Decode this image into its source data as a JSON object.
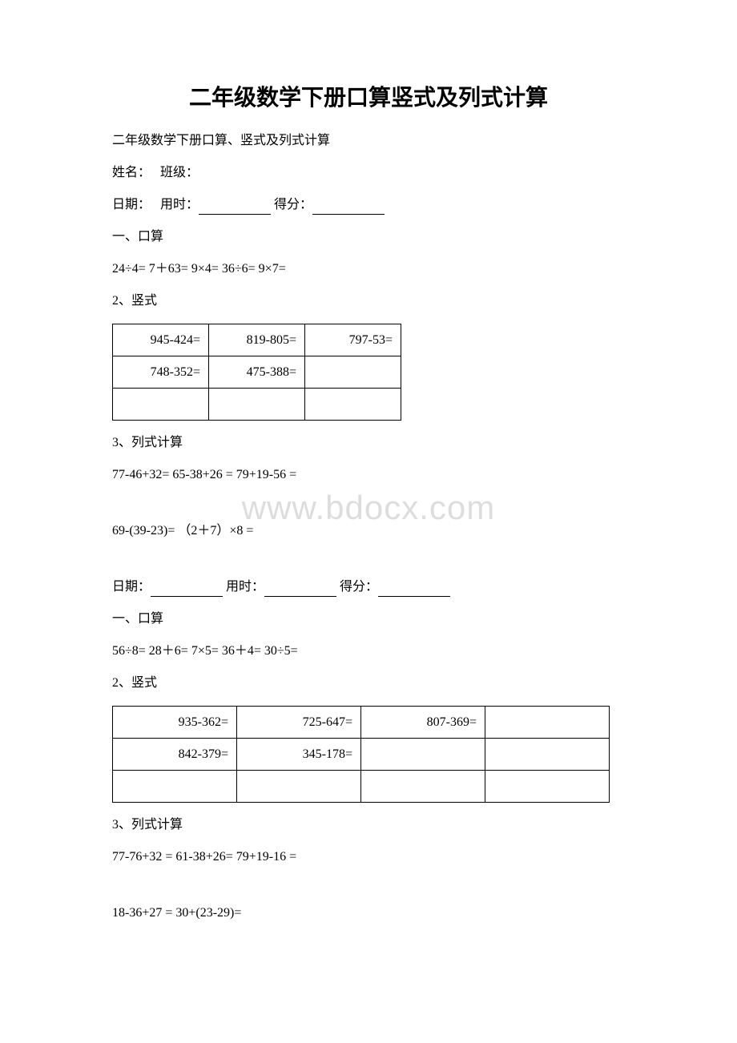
{
  "title": "二年级数学下册口算竖式及列式计算",
  "subtitle": "二年级数学下册口算、竖式及列式计算",
  "name_label": "姓名：",
  "class_label": "班级：",
  "date_label": "日期：",
  "time_label": "用时：",
  "score_label": "得分：",
  "section1": {
    "heading_mental": "一、口算",
    "mental_line": "24÷4= 7＋63= 9×4= 36÷6= 9×7=",
    "heading_vertical": "2、竖式",
    "table": {
      "columns": 3,
      "rows": [
        [
          "945-424=",
          "819-805=",
          "797-53="
        ],
        [
          "748-352=",
          "475-388=",
          ""
        ],
        [
          "",
          "",
          ""
        ]
      ]
    },
    "heading_expr": "3、列式计算",
    "expr1": "77-46+32= 65-38+26 = 79+19-56 =",
    "expr2": "69-(39-23)= （2＋7）×8 ="
  },
  "section2": {
    "heading_mental": "一、口算",
    "mental_line": "56÷8= 28＋6= 7×5= 36＋4= 30÷5=",
    "heading_vertical": "2、竖式",
    "table": {
      "columns": 4,
      "rows": [
        [
          "935-362=",
          "725-647=",
          "807-369=",
          ""
        ],
        [
          "842-379=",
          "345-178=",
          "",
          ""
        ],
        [
          "",
          "",
          "",
          ""
        ]
      ]
    },
    "heading_expr": "3、列式计算",
    "expr1": "77-76+32 = 61-38+26= 79+19-16 =",
    "expr2": "18-36+27 = 30+(23-29)="
  },
  "watermark": "www.bdocx.com"
}
